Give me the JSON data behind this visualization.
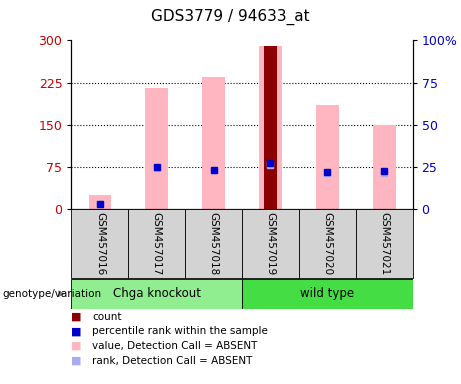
{
  "title": "GDS3779 / 94633_at",
  "samples": [
    "GSM457016",
    "GSM457017",
    "GSM457018",
    "GSM457019",
    "GSM457020",
    "GSM457021"
  ],
  "groups": [
    {
      "name": "Chga knockout",
      "indices": [
        0,
        1,
        2
      ],
      "color": "#90EE90"
    },
    {
      "name": "wild type",
      "indices": [
        3,
        4,
        5
      ],
      "color": "#44DD44"
    }
  ],
  "pink_bar_heights": [
    25,
    215,
    235,
    290,
    185,
    150
  ],
  "dark_red_bar_heights": [
    0,
    0,
    0,
    290,
    0,
    0
  ],
  "blue_dot_left_axis": [
    10,
    75,
    70,
    83,
    67,
    68
  ],
  "light_blue_dot_left_axis": [
    10,
    74,
    69,
    79,
    65,
    65
  ],
  "left_ylim": [
    0,
    300
  ],
  "right_ylim": [
    0,
    100
  ],
  "left_yticks": [
    0,
    75,
    150,
    225,
    300
  ],
  "right_yticks": [
    0,
    25,
    50,
    75,
    100
  ],
  "left_ylabel_color": "#CC0000",
  "right_ylabel_color": "#0000CC",
  "pink_color": "#FFB6C1",
  "dark_red_color": "#8B0000",
  "blue_color": "#0000CD",
  "light_blue_color": "#AAAAEE",
  "genotype_label": "genotype/variation",
  "legend_items": [
    {
      "label": "count",
      "color": "#8B0000"
    },
    {
      "label": "percentile rank within the sample",
      "color": "#0000CD"
    },
    {
      "label": "value, Detection Call = ABSENT",
      "color": "#FFB6C1"
    },
    {
      "label": "rank, Detection Call = ABSENT",
      "color": "#AAAAEE"
    }
  ]
}
